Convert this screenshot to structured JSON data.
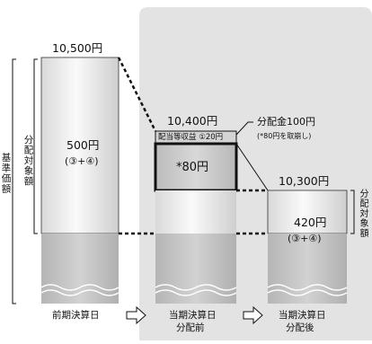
{
  "columns": {
    "prev": {
      "total": "10,500円",
      "distributable": "500円",
      "distributable_source": "(③+④)",
      "date_label": "前期決算日"
    },
    "before": {
      "total": "10,400円",
      "income_label": "配当等収益 ①20円",
      "withdrawn": "*80円",
      "date_label_1": "当期決算日",
      "date_label_2": "分配前"
    },
    "after": {
      "total": "10,300円",
      "distributable": "420円",
      "distributable_source": "(③+④)",
      "date_label_1": "当期決算日",
      "date_label_2": "分配後"
    }
  },
  "side_labels": {
    "base_price": "基準価額",
    "distributable_prev": "分配対象額",
    "distributable_after": "分配対象額"
  },
  "callout": {
    "title": "分配金100円",
    "note": "(*80円を取崩し)"
  },
  "arrows": [
    "right-arrow",
    "right-arrow"
  ],
  "colors": {
    "panel": "#e3e3e3",
    "column_light": "#f2f2f2",
    "column_dark": "#c8c8c8",
    "base_dark": "#bdbdbd",
    "outline": "#1a1a1a"
  }
}
